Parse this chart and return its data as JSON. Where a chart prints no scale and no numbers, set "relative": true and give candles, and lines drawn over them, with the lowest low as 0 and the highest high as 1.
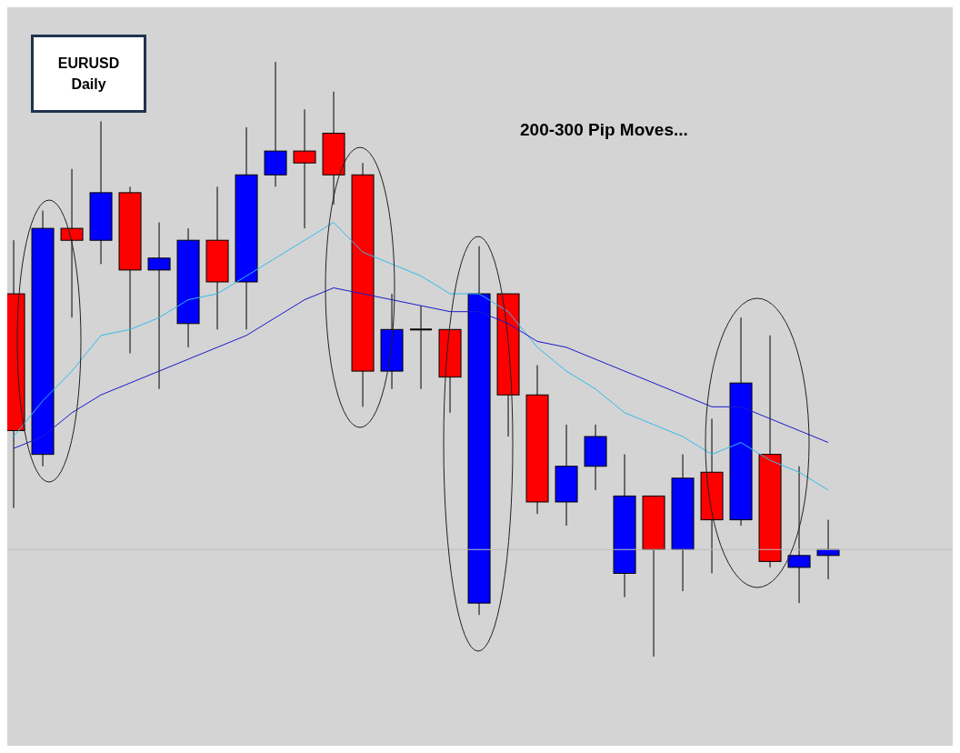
{
  "chart_data": {
    "type": "candlestick",
    "title": "EURUSD",
    "subtitle": "Daily",
    "annotations": [
      "200-300 Pip Moves..."
    ],
    "relative": true,
    "tick_labels": false,
    "categories": [
      null,
      null,
      null,
      null,
      null,
      null,
      null,
      null,
      null,
      null,
      null,
      null,
      null,
      null,
      null,
      null,
      null,
      null,
      null,
      null,
      null,
      null,
      null,
      null,
      null,
      null,
      null,
      null,
      null
    ],
    "ohlc": [
      [
        0.61,
        0.7,
        0.25,
        0.38
      ],
      [
        0.34,
        0.75,
        0.32,
        0.72
      ],
      [
        0.72,
        0.82,
        0.57,
        0.7
      ],
      [
        0.7,
        0.9,
        0.66,
        0.78
      ],
      [
        0.78,
        0.79,
        0.51,
        0.65
      ],
      [
        0.65,
        0.73,
        0.45,
        0.67
      ],
      [
        0.56,
        0.72,
        0.52,
        0.7
      ],
      [
        0.7,
        0.79,
        0.55,
        0.63
      ],
      [
        0.63,
        0.89,
        0.55,
        0.81
      ],
      [
        0.81,
        1.0,
        0.79,
        0.85
      ],
      [
        0.85,
        0.92,
        0.72,
        0.83
      ],
      [
        0.88,
        0.95,
        0.76,
        0.81
      ],
      [
        0.81,
        0.83,
        0.42,
        0.48
      ],
      [
        0.48,
        0.61,
        0.45,
        0.55
      ],
      [
        0.55,
        0.59,
        0.45,
        0.55
      ],
      [
        0.55,
        0.55,
        0.41,
        0.47
      ],
      [
        0.09,
        0.69,
        0.07,
        0.61
      ],
      [
        0.61,
        0.61,
        0.37,
        0.44
      ],
      [
        0.44,
        0.49,
        0.24,
        0.26
      ],
      [
        0.26,
        0.39,
        0.22,
        0.32
      ],
      [
        0.32,
        0.39,
        0.28,
        0.37
      ],
      [
        0.14,
        0.34,
        0.1,
        0.27
      ],
      [
        0.27,
        0.27,
        0.0,
        0.18
      ],
      [
        0.18,
        0.34,
        0.11,
        0.3
      ],
      [
        0.31,
        0.4,
        0.14,
        0.23
      ],
      [
        0.23,
        0.57,
        0.22,
        0.46
      ],
      [
        0.34,
        0.54,
        0.15,
        0.16
      ],
      [
        0.15,
        0.32,
        0.09,
        0.17
      ],
      [
        0.17,
        0.23,
        0.13,
        0.18
      ]
    ],
    "colors": [
      "#ff0000",
      "#0000ff",
      "#ff0000",
      "#0000ff",
      "#ff0000",
      "#0000ff",
      "#0000ff",
      "#ff0000",
      "#0000ff",
      "#0000ff",
      "#ff0000",
      "#ff0000",
      "#ff0000",
      "#0000ff",
      "#000000",
      "#ff0000",
      "#0000ff",
      "#ff0000",
      "#ff0000",
      "#0000ff",
      "#0000ff",
      "#0000ff",
      "#ff0000",
      "#0000ff",
      "#ff0000",
      "#0000ff",
      "#ff0000",
      "#0000ff",
      "#0000ff"
    ],
    "series": [
      {
        "type": "line",
        "color": "#33bbee",
        "values": [
          0.37,
          0.43,
          0.48,
          0.54,
          0.55,
          0.57,
          0.6,
          0.61,
          0.64,
          0.67,
          0.7,
          0.73,
          0.68,
          0.66,
          0.64,
          0.61,
          0.61,
          0.58,
          0.52,
          0.48,
          0.45,
          0.41,
          0.39,
          0.37,
          0.34,
          0.36,
          0.33,
          0.31,
          0.28
        ]
      },
      {
        "type": "line",
        "color": "#1a1acc",
        "values": [
          0.35,
          0.37,
          0.41,
          0.44,
          0.46,
          0.48,
          0.5,
          0.52,
          0.54,
          0.57,
          0.6,
          0.62,
          0.61,
          0.6,
          0.59,
          0.58,
          0.58,
          0.56,
          0.53,
          0.52,
          0.5,
          0.48,
          0.46,
          0.44,
          0.42,
          0.42,
          0.4,
          0.38,
          0.36
        ]
      }
    ],
    "ref_lines": [
      {
        "axis": "y",
        "value": 0.18,
        "color": "#bcbcbc"
      }
    ]
  }
}
